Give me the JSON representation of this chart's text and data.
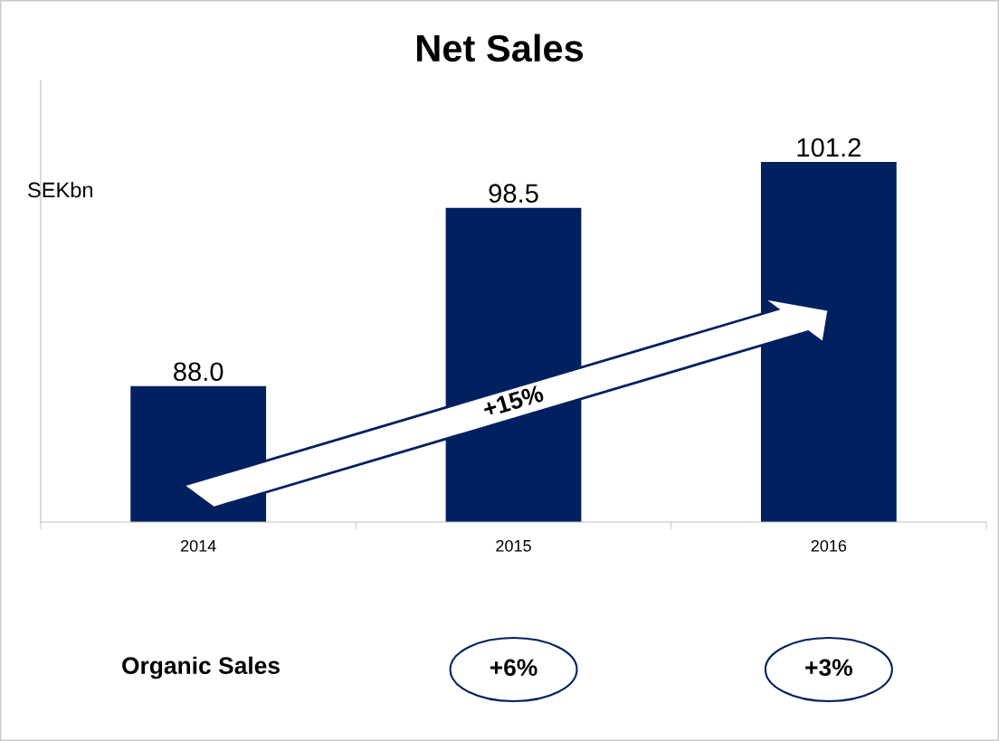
{
  "chart_data": {
    "type": "bar",
    "title": "Net Sales",
    "categories": [
      "2014",
      "2015",
      "2016"
    ],
    "values": [
      88.0,
      98.5,
      101.2
    ],
    "color": "#002060",
    "ylim": [
      80,
      106
    ],
    "tick_labels": "x",
    "value_labels": [
      "88.0",
      "98.5",
      "101.2"
    ],
    "grid": false,
    "legend": false,
    "annotations": [
      "SEKbn",
      "+15%",
      "Organic Sales",
      "+6%",
      "+3%"
    ]
  }
}
